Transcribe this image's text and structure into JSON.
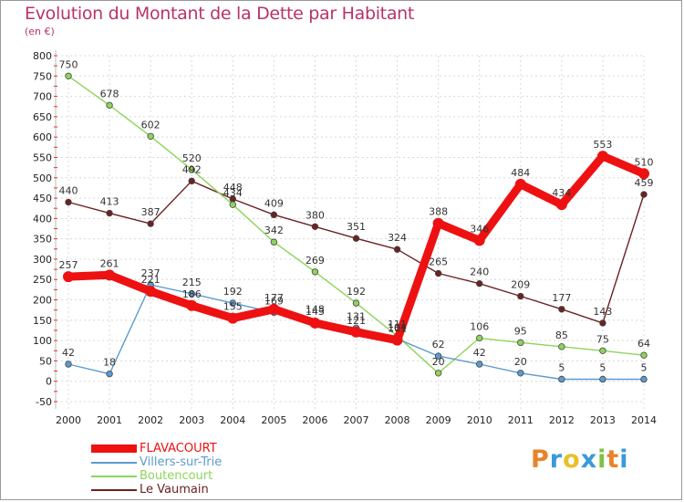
{
  "title": "Evolution du Montant de la Dette par Habitant",
  "subtitle": "(en €)",
  "logo": "Proxiti",
  "logo_colors": [
    "#e8832a",
    "#3a9ad9",
    "#e8c02a",
    "#3a9ad9",
    "#7cc242",
    "#e8832a",
    "#3a9ad9"
  ],
  "chart_data": {
    "type": "line",
    "title": "Evolution du Montant de la Dette par Habitant",
    "subtitle": "(en €)",
    "xlabel": "",
    "ylabel": "",
    "x": [
      "2000",
      "2001",
      "2002",
      "2003",
      "2004",
      "2005",
      "2006",
      "2007",
      "2008",
      "2009",
      "2010",
      "2011",
      "2012",
      "2013",
      "2014"
    ],
    "ylim": [
      -50,
      800
    ],
    "yticks": [
      "-50",
      "0",
      "50",
      "100",
      "150",
      "200",
      "250",
      "300",
      "350",
      "400",
      "450",
      "500",
      "550",
      "600",
      "650",
      "700",
      "750",
      "800"
    ],
    "grid": true,
    "legend_position": "bottom-left",
    "series": [
      {
        "name": "FLAVACOURT",
        "color": "#ee1111",
        "values": [
          257,
          261,
          221,
          186,
          155,
          177,
          143,
          121,
          101,
          388,
          346,
          484,
          434,
          553,
          510
        ],
        "labels": [
          "257",
          "261",
          "221",
          "186",
          "155",
          "177",
          "143",
          "121",
          "101",
          "388",
          "346",
          "484",
          "434",
          "553",
          "510"
        ]
      },
      {
        "name": "Villers-sur-Trie",
        "color": "#5b9bd0",
        "values": [
          42,
          18,
          237,
          215,
          192,
          169,
          148,
          131,
          104,
          62,
          42,
          20,
          5,
          5,
          5
        ],
        "labels": [
          "42",
          "18",
          "237",
          "215",
          "192",
          "169",
          "148",
          "131",
          "104",
          "62",
          "42",
          "20",
          "5",
          "5",
          "5"
        ]
      },
      {
        "name": "Boutencourt",
        "color": "#8ed45c",
        "values": [
          750,
          678,
          602,
          520,
          434,
          342,
          269,
          192,
          111,
          20,
          106,
          95,
          85,
          75,
          64
        ],
        "labels": [
          "750",
          "678",
          "602",
          "520",
          "434",
          "342",
          "269",
          "192",
          "111",
          "20",
          "106",
          "95",
          "85",
          "75",
          "64"
        ]
      },
      {
        "name": "Le Vaumain",
        "color": "#6b2222",
        "values": [
          440,
          413,
          387,
          492,
          448,
          409,
          380,
          351,
          324,
          265,
          240,
          209,
          177,
          143,
          459
        ],
        "labels": [
          "440",
          "413",
          "387",
          "492",
          "448",
          "409",
          "380",
          "351",
          "324",
          "265",
          "240",
          "209",
          "177",
          "143",
          "459"
        ]
      }
    ]
  }
}
